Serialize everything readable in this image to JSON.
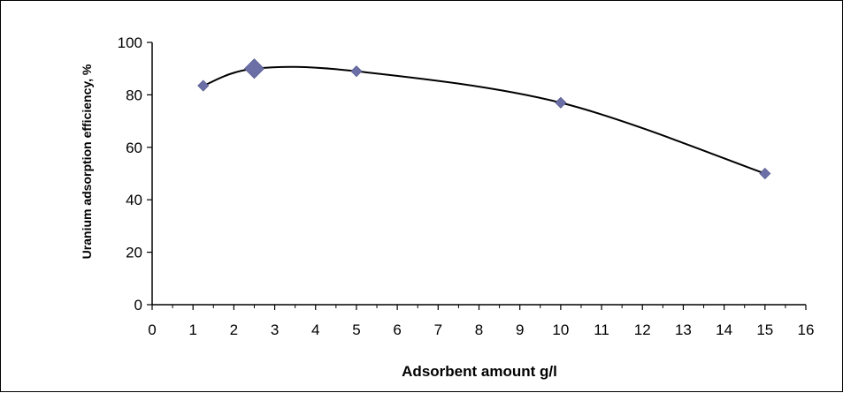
{
  "chart_data": {
    "type": "scatter",
    "title": "",
    "xlabel": "Adsorbent amount g/l",
    "ylabel": "Uranium adsorption efficiency, %",
    "xlim": [
      0,
      16
    ],
    "ylim": [
      0,
      100
    ],
    "x_ticks": [
      "0",
      "1",
      "2",
      "3",
      "4",
      "5",
      "6",
      "7",
      "8",
      "9",
      "10",
      "11",
      "12",
      "13",
      "14",
      "15",
      "16"
    ],
    "y_ticks": [
      "0",
      "20",
      "40",
      "60",
      "80",
      "100"
    ],
    "grid": false,
    "legend": "none",
    "marker": "diamond",
    "marker_color": "#6B6FA6",
    "line_color": "#000000",
    "line_style": "smooth",
    "series": [
      {
        "x": [
          1.25,
          2.5,
          5,
          10,
          15
        ],
        "y": [
          83.5,
          90,
          89,
          77,
          50
        ],
        "highlighted_point_index": 1
      }
    ]
  }
}
